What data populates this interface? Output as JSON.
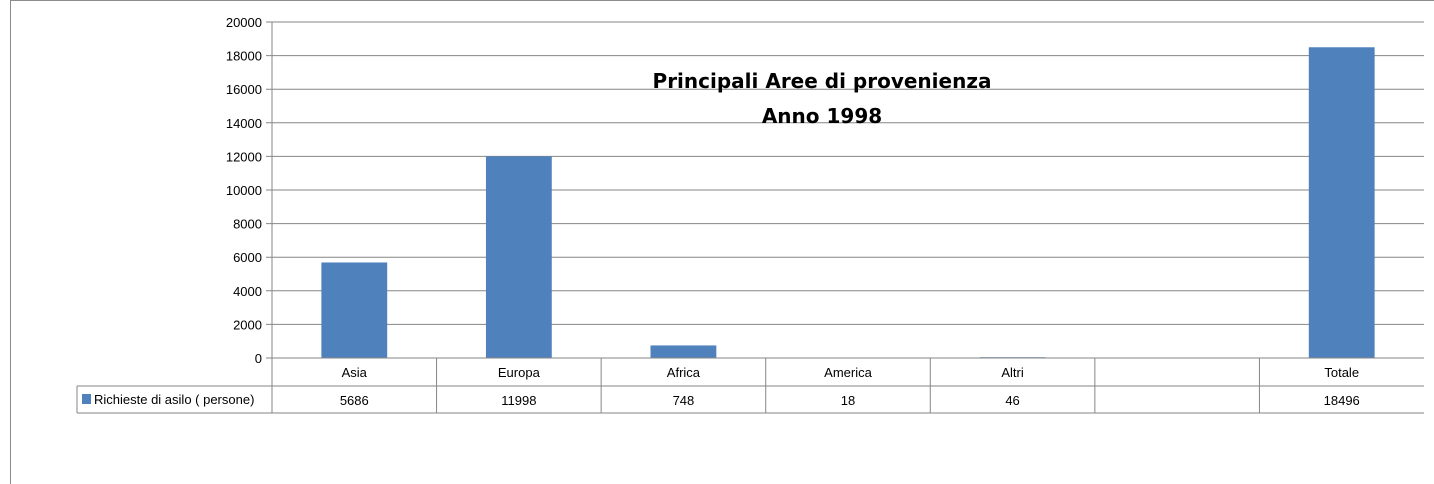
{
  "chart_data": {
    "type": "bar",
    "title": "Principali Aree di provenienza",
    "subtitle": "Anno 1998",
    "categories": [
      "Asia",
      "Europa",
      "Africa",
      "America",
      "Altri",
      "",
      "Totale"
    ],
    "series": [
      {
        "name": "Richieste di asilo ( persone)",
        "values": [
          5686,
          11998,
          748,
          18,
          46,
          null,
          18496
        ],
        "table_values": [
          "5686",
          "11998",
          "748",
          "18",
          "46",
          "",
          "18496"
        ],
        "color": "#4f81bd"
      }
    ],
    "ylim": [
      0,
      20000
    ],
    "yticks": [
      "0",
      "2000",
      "4000",
      "6000",
      "8000",
      "10000",
      "12000",
      "14000",
      "16000",
      "18000",
      "20000"
    ],
    "grid": true,
    "data_table": true,
    "legend": "data-table-left"
  }
}
